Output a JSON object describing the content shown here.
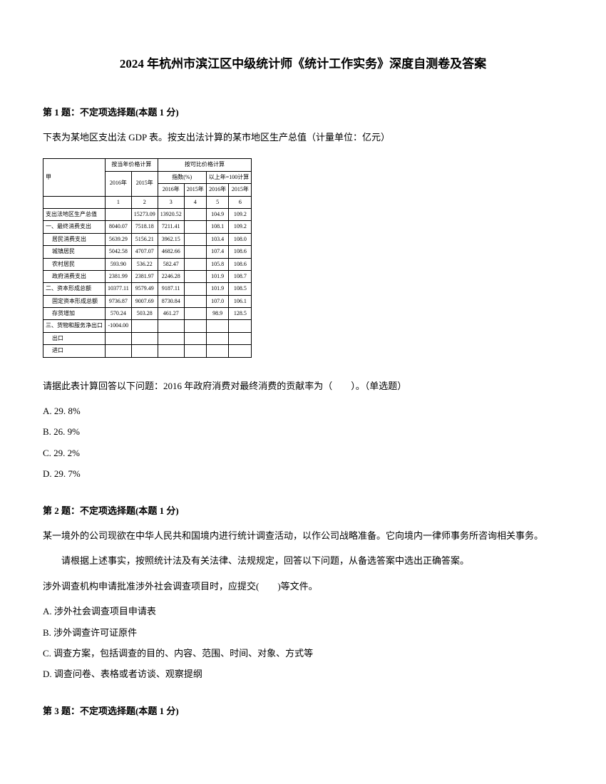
{
  "title": "2024 年杭州市滨江区中级统计师《统计工作实务》深度自测卷及答案",
  "q1": {
    "header": "第 1 题：不定项选择题(本题 1 分)",
    "text": "下表为某地区支出法 GDP 表。按支出法计算的某市地区生产总值（计量单位：亿元）",
    "prompt": "请据此表计算回答以下问题：2016 年政府消费对最终消费的贡献率为（　　）。（单选题）",
    "optA": "A. 29. 8%",
    "optB": "B. 26. 9%",
    "optC": "C. 29. 2%",
    "optD": "D. 29. 7%"
  },
  "table": {
    "header_group1": "按当年价格计算",
    "header_group2": "按可比价格计算",
    "year2016": "2016年",
    "year2015": "2015年",
    "idx_label": "指数(%)",
    "prev_label": "以上年=100计算",
    "col1": "1",
    "col2": "2",
    "col3": "3",
    "col4": "4",
    "col5": "5",
    "col6": "6",
    "item_label": "甲",
    "rows": [
      {
        "label": "支出法地区生产总值",
        "v1": "",
        "v2": "15273.09",
        "v3": "13920.52",
        "v4": "",
        "v5": "104.9",
        "v6": "109.2"
      },
      {
        "label": "一、最终消费支出",
        "v1": "8040.07",
        "v2": "7518.18",
        "v3": "7211.41",
        "v4": "",
        "v5": "108.1",
        "v6": "109.2"
      },
      {
        "label": "居民消费支出",
        "v1": "5639.29",
        "v2": "5156.21",
        "v3": "3962.15",
        "v4": "",
        "v5": "103.4",
        "v6": "108.0",
        "indent": true
      },
      {
        "label": "城镇居民",
        "v1": "5042.58",
        "v2": "4707.07",
        "v3": "4682.66",
        "v4": "",
        "v5": "107.4",
        "v6": "108.6",
        "indent": true
      },
      {
        "label": "农村居民",
        "v1": "593.90",
        "v2": "536.22",
        "v3": "582.47",
        "v4": "",
        "v5": "105.8",
        "v6": "108.6",
        "indent": true
      },
      {
        "label": "政府消费支出",
        "v1": "2381.99",
        "v2": "2381.97",
        "v3": "2246.28",
        "v4": "",
        "v5": "101.9",
        "v6": "108.7",
        "indent": true
      },
      {
        "label": "二、资本形成总额",
        "v1": "10377.11",
        "v2": "9579.49",
        "v3": "9187.11",
        "v4": "",
        "v5": "101.9",
        "v6": "108.5"
      },
      {
        "label": "固定资本形成总额",
        "v1": "9736.87",
        "v2": "9007.69",
        "v3": "8730.84",
        "v4": "",
        "v5": "107.0",
        "v6": "106.1",
        "indent": true
      },
      {
        "label": "存货增加",
        "v1": "570.24",
        "v2": "503.28",
        "v3": "461.27",
        "v4": "",
        "v5": "98.9",
        "v6": "128.5",
        "indent": true
      },
      {
        "label": "三、货物和服务净出口",
        "v1": "-1004.00",
        "v2": "",
        "v3": "",
        "v4": "",
        "v5": "",
        "v6": ""
      },
      {
        "label": "出口",
        "v1": "",
        "v2": "",
        "v3": "",
        "v4": "",
        "v5": "",
        "v6": "",
        "indent": true
      },
      {
        "label": "进口",
        "v1": "",
        "v2": "",
        "v3": "",
        "v4": "",
        "v5": "",
        "v6": "",
        "indent": true
      }
    ]
  },
  "q2": {
    "header": "第 2 题：不定项选择题(本题 1 分)",
    "text1": "某一境外的公司现欲在中华人民共和国境内进行统计调查活动，以作公司战略准备。它向境内一律师事务所咨询相关事务。",
    "text2": "请根据上述事实，按照统计法及有关法律、法规规定，回答以下问题，从备选答案中选出正确答案。",
    "text3": "涉外调查机构申请批准涉外社会调查项目时，应提交(　　)等文件。",
    "optA": "A. 涉外社会调查项目申请表",
    "optB": "B. 涉外调查许可证原件",
    "optC": "C. 调查方案，包括调查的目的、内容、范围、时间、对象、方式等",
    "optD": "D. 调查问卷、表格或者访谈、观察提纲"
  },
  "q3": {
    "header": "第 3 题：不定项选择题(本题 1 分)"
  }
}
